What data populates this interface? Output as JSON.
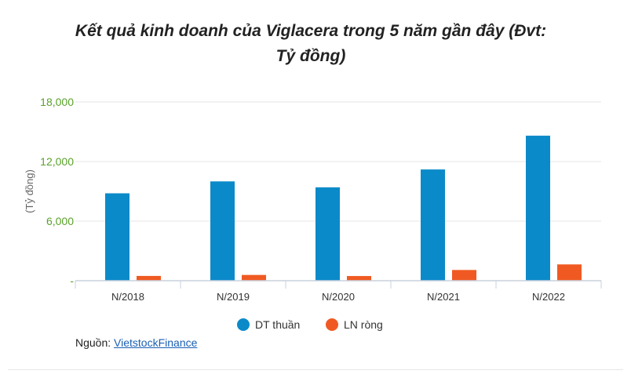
{
  "chart_data": {
    "type": "bar",
    "title_line1": "Kết quả kinh doanh của Viglacera trong 5 năm gần đây (Đvt:",
    "title_line2": "Tỷ đồng)",
    "ylabel": "(Tỷ đồng)",
    "ylim": [
      0,
      18000
    ],
    "yticks": [
      {
        "value": 0,
        "label": "-"
      },
      {
        "value": 6000,
        "label": "6,000"
      },
      {
        "value": 12000,
        "label": "12,000"
      },
      {
        "value": 18000,
        "label": "18,000"
      }
    ],
    "categories": [
      "N/2018",
      "N/2019",
      "N/2020",
      "N/2021",
      "N/2022"
    ],
    "series": [
      {
        "name": "DT thuần",
        "color": "#0b8ac9",
        "values": [
          8800,
          10000,
          9400,
          11200,
          14600
        ]
      },
      {
        "name": "LN ròng",
        "color": "#f05a22",
        "values": [
          480,
          580,
          470,
          1080,
          1640
        ]
      }
    ],
    "grid": true,
    "legend_position": "bottom"
  },
  "source": {
    "prefix": "Nguồn: ",
    "link_text": "VietstockFinance"
  }
}
